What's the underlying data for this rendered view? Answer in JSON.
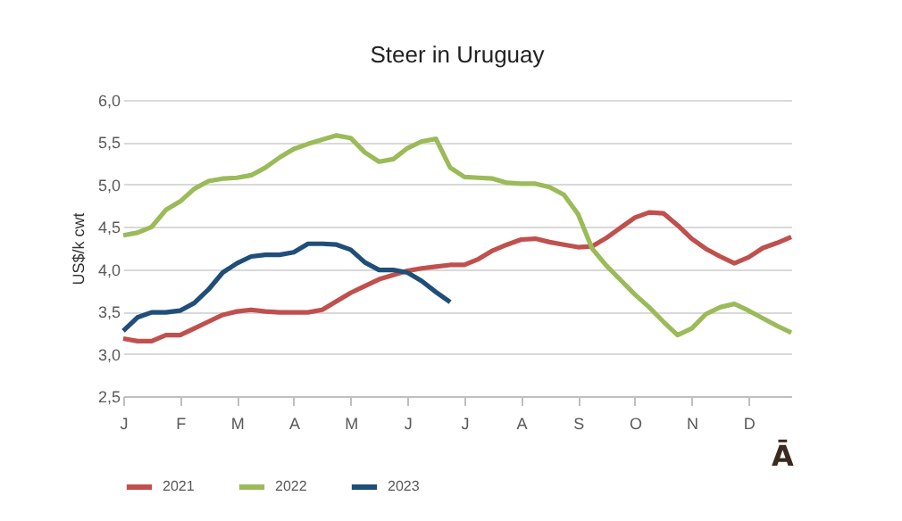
{
  "chart_data": {
    "type": "line",
    "title": "Steer  in Uruguay",
    "ylabel": "US$/k cwt",
    "categories": [
      "J",
      null,
      null,
      null,
      "F",
      null,
      null,
      null,
      "M",
      null,
      null,
      null,
      "A",
      null,
      null,
      null,
      "M",
      null,
      null,
      null,
      "J",
      null,
      null,
      null,
      "J",
      null,
      null,
      null,
      "A",
      null,
      null,
      null,
      "S",
      null,
      null,
      null,
      "O",
      null,
      null,
      null,
      "N",
      null,
      null,
      null,
      "D",
      null,
      null,
      null
    ],
    "ylim": [
      2.5,
      6.0
    ],
    "yticks": [
      {
        "value": 2.5,
        "label": "2,5"
      },
      {
        "value": 3.0,
        "label": "3,0"
      },
      {
        "value": 3.5,
        "label": "3,5"
      },
      {
        "value": 4.0,
        "label": "4,0"
      },
      {
        "value": 4.5,
        "label": "4,5"
      },
      {
        "value": 5.0,
        "label": "5,0"
      },
      {
        "value": 5.5,
        "label": "5,5"
      },
      {
        "value": 6.0,
        "label": "6,0"
      }
    ],
    "grid": "y",
    "legend": "bottom",
    "line_style": "solid",
    "marker": "none",
    "series": [
      {
        "name": "2021",
        "color": "#c0504d",
        "values": [
          3.18,
          3.15,
          3.15,
          3.22,
          3.22,
          3.3,
          3.38,
          3.46,
          3.5,
          3.52,
          3.5,
          3.49,
          3.49,
          3.49,
          3.52,
          3.62,
          3.72,
          3.8,
          3.88,
          3.93,
          3.98,
          4.01,
          4.03,
          4.05,
          4.05,
          4.12,
          4.22,
          4.29,
          4.35,
          4.36,
          4.32,
          4.29,
          4.26,
          4.27,
          4.37,
          4.49,
          4.61,
          4.67,
          4.66,
          4.52,
          4.36,
          4.24,
          4.15,
          4.07,
          4.14,
          4.25,
          4.31,
          4.38
        ]
      },
      {
        "name": "2022",
        "color": "#9bbb59",
        "values": [
          4.4,
          4.43,
          4.5,
          4.7,
          4.8,
          4.95,
          5.04,
          5.07,
          5.08,
          5.11,
          5.2,
          5.32,
          5.42,
          5.48,
          5.53,
          5.58,
          5.55,
          5.38,
          5.27,
          5.3,
          5.43,
          5.51,
          5.54,
          5.2,
          5.09,
          5.08,
          5.07,
          5.02,
          5.01,
          5.01,
          4.97,
          4.88,
          4.65,
          4.24,
          4.04,
          3.87,
          3.7,
          3.55,
          3.38,
          3.22,
          3.3,
          3.47,
          3.55,
          3.59,
          3.51,
          3.42,
          3.33,
          3.25
        ]
      },
      {
        "name": "2023",
        "color": "#1f4e79",
        "values": [
          3.27,
          3.43,
          3.49,
          3.49,
          3.51,
          3.6,
          3.76,
          3.96,
          4.07,
          4.15,
          4.17,
          4.17,
          4.2,
          4.3,
          4.3,
          4.29,
          4.23,
          4.08,
          3.99,
          3.99,
          3.96,
          3.86,
          3.73,
          3.61,
          null,
          null,
          null,
          null,
          null,
          null,
          null,
          null,
          null,
          null,
          null,
          null,
          null,
          null,
          null,
          null,
          null,
          null,
          null,
          null,
          null,
          null,
          null,
          null
        ]
      }
    ],
    "annotations": [
      "Ā"
    ]
  }
}
